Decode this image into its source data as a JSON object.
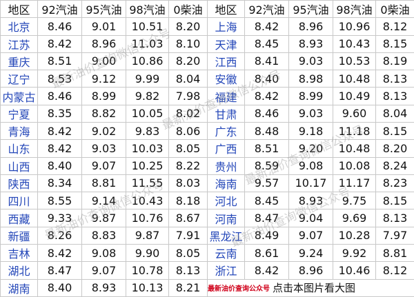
{
  "table": {
    "header": [
      "地区",
      "92汽油",
      "95汽油",
      "98汽油",
      "0柴油",
      "地区",
      "92汽油",
      "95汽油",
      "98汽油",
      "0柴油"
    ],
    "rows": [
      [
        "北京",
        "8.46",
        "9.01",
        "10.51",
        "8.20",
        "上海",
        "8.42",
        "8.96",
        "10.96",
        "8.12"
      ],
      [
        "江苏",
        "8.42",
        "8.96",
        "11.03",
        "8.10",
        "天津",
        "8.45",
        "8.93",
        "10.43",
        "8.15"
      ],
      [
        "重庆",
        "8.51",
        "9.00",
        "10.86",
        "8.20",
        "江西",
        "8.41",
        "9.03",
        "10.53",
        "8.19"
      ],
      [
        "辽宁",
        "8.53",
        "9.12",
        "9.99",
        "8.04",
        "安徽",
        "8.40",
        "8.98",
        "10.48",
        "8.13"
      ],
      [
        "内蒙古",
        "8.46",
        "8.99",
        "9.82",
        "7.98",
        "福建",
        "8.42",
        "8.99",
        "10.49",
        "8.13"
      ],
      [
        "宁夏",
        "8.35",
        "8.82",
        "10.05",
        "8.02",
        "甘肃",
        "8.46",
        "9.03",
        "9.60",
        "8.04"
      ],
      [
        "青海",
        "8.42",
        "9.02",
        "9.83",
        "8.06",
        "广东",
        "8.48",
        "9.18",
        "11.18",
        "8.15"
      ],
      [
        "山东",
        "8.42",
        "9.03",
        "10.03",
        "8.05",
        "广西",
        "8.51",
        "9.20",
        "10.48",
        "8.20"
      ],
      [
        "山西",
        "8.40",
        "9.07",
        "10.25",
        "8.22",
        "贵州",
        "8.59",
        "9.08",
        "10.08",
        "8.24"
      ],
      [
        "陕西",
        "8.34",
        "8.81",
        "11.55",
        "8.03",
        "海南",
        "9.57",
        "10.17",
        "11.17",
        "8.23"
      ],
      [
        "四川",
        "8.55",
        "9.14",
        "10.43",
        "8.18",
        "河北",
        "8.45",
        "8.93",
        "9.75",
        "8.15"
      ],
      [
        "西藏",
        "9.33",
        "9.87",
        "10.76",
        "8.67",
        "河南",
        "8.47",
        "9.04",
        "9.69",
        "8.13"
      ],
      [
        "新疆",
        "8.26",
        "8.83",
        "9.87",
        "7.91",
        "黑龙江",
        "8.49",
        "9.07",
        "10.28",
        "7.97"
      ],
      [
        "吉林",
        "8.42",
        "9.08",
        "9.90",
        "8.05",
        "云南",
        "8.61",
        "9.24",
        "9.92",
        "8.81"
      ],
      [
        "湖北",
        "8.47",
        "9.07",
        "10.78",
        "8.13",
        "浙江",
        "8.42",
        "8.96",
        "10.46",
        "8.12"
      ],
      [
        "湖南",
        "8.40",
        "8.93",
        "10.13",
        "8.21"
      ]
    ],
    "footer": {
      "note": "最新油价查询公众号",
      "link": "点击本图片看大图"
    },
    "watermark": "最新油价查询微信公众号"
  }
}
